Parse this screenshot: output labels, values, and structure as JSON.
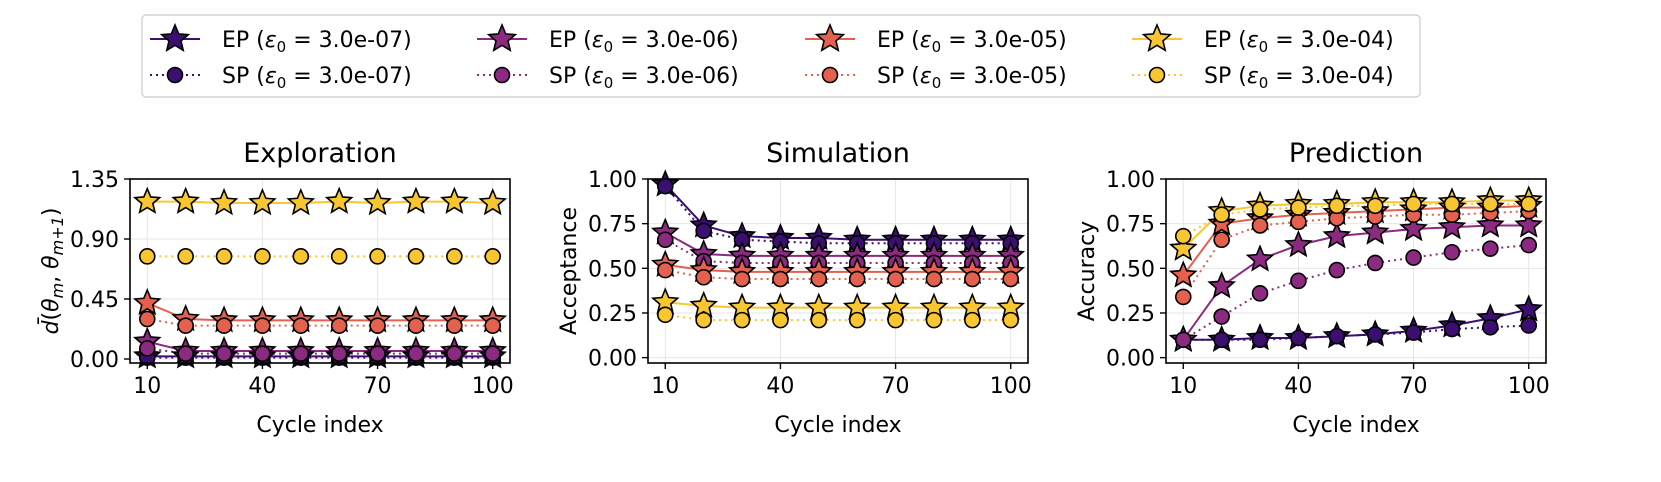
{
  "colors": {
    "c1": "#3b0f70",
    "c2": "#8c2981",
    "c3": "#e3614e",
    "c4": "#f8c630"
  },
  "legend": {
    "entries": [
      {
        "key": "c1",
        "method": "EP",
        "eps": "3.0e-07",
        "style": "star"
      },
      {
        "key": "c2",
        "method": "EP",
        "eps": "3.0e-06",
        "style": "star"
      },
      {
        "key": "c3",
        "method": "EP",
        "eps": "3.0e-05",
        "style": "star"
      },
      {
        "key": "c4",
        "method": "EP",
        "eps": "3.0e-04",
        "style": "star"
      },
      {
        "key": "c1",
        "method": "SP",
        "eps": "3.0e-07",
        "style": "circle"
      },
      {
        "key": "c2",
        "method": "SP",
        "eps": "3.0e-06",
        "style": "circle"
      },
      {
        "key": "c3",
        "method": "SP",
        "eps": "3.0e-05",
        "style": "circle"
      },
      {
        "key": "c4",
        "method": "SP",
        "eps": "3.0e-04",
        "style": "circle"
      }
    ]
  },
  "chart_data": [
    {
      "type": "line",
      "title": "Exploration",
      "xlabel": "Cycle index",
      "ylabel": "d̄(θm, θm+1)",
      "x": [
        10,
        20,
        30,
        40,
        50,
        60,
        70,
        80,
        90,
        100
      ],
      "xticks": [
        10,
        40,
        70,
        100
      ],
      "yticks": [
        0.0,
        0.45,
        0.9,
        1.35
      ],
      "ytick_labels": [
        "0.00",
        "0.45",
        "0.90",
        "1.35"
      ],
      "ylim": [
        -0.03,
        1.35
      ],
      "series": [
        {
          "name": "EP (ε0 = 3.0e-07)",
          "key": "c1",
          "style": "star",
          "values": [
            0.02,
            0.02,
            0.02,
            0.02,
            0.02,
            0.02,
            0.02,
            0.02,
            0.02,
            0.02
          ]
        },
        {
          "name": "SP (ε0 = 3.0e-07)",
          "key": "c1",
          "style": "circle",
          "values": [
            0.01,
            0.01,
            0.01,
            0.01,
            0.01,
            0.01,
            0.01,
            0.01,
            0.01,
            0.01
          ]
        },
        {
          "name": "EP (ε0 = 3.0e-06)",
          "key": "c2",
          "style": "star",
          "values": [
            0.13,
            0.06,
            0.06,
            0.06,
            0.06,
            0.06,
            0.06,
            0.06,
            0.06,
            0.06
          ]
        },
        {
          "name": "SP (ε0 = 3.0e-06)",
          "key": "c2",
          "style": "circle",
          "values": [
            0.08,
            0.04,
            0.04,
            0.04,
            0.04,
            0.04,
            0.04,
            0.04,
            0.04,
            0.04
          ]
        },
        {
          "name": "EP (ε0 = 3.0e-05)",
          "key": "c3",
          "style": "star",
          "values": [
            0.42,
            0.3,
            0.29,
            0.29,
            0.29,
            0.29,
            0.29,
            0.29,
            0.29,
            0.29
          ]
        },
        {
          "name": "SP (ε0 = 3.0e-05)",
          "key": "c3",
          "style": "circle",
          "values": [
            0.3,
            0.25,
            0.25,
            0.25,
            0.25,
            0.25,
            0.25,
            0.25,
            0.25,
            0.25
          ]
        },
        {
          "name": "EP (ε0 = 3.0e-04)",
          "key": "c4",
          "style": "star",
          "values": [
            1.18,
            1.18,
            1.17,
            1.17,
            1.17,
            1.18,
            1.17,
            1.18,
            1.18,
            1.17
          ]
        },
        {
          "name": "SP (ε0 = 3.0e-04)",
          "key": "c4",
          "style": "circle",
          "values": [
            0.77,
            0.77,
            0.77,
            0.77,
            0.77,
            0.77,
            0.77,
            0.77,
            0.77,
            0.77
          ]
        }
      ]
    },
    {
      "type": "line",
      "title": "Simulation",
      "xlabel": "Cycle index",
      "ylabel": "Acceptance",
      "x": [
        10,
        20,
        30,
        40,
        50,
        60,
        70,
        80,
        90,
        100
      ],
      "xticks": [
        10,
        40,
        70,
        100
      ],
      "yticks": [
        0.0,
        0.25,
        0.5,
        0.75,
        1.0
      ],
      "ytick_labels": [
        "0.00",
        "0.25",
        "0.50",
        "0.75",
        "1.00"
      ],
      "ylim": [
        -0.03,
        1.0
      ],
      "series": [
        {
          "name": "EP (ε0 = 3.0e-07)",
          "key": "c1",
          "style": "star",
          "values": [
            0.97,
            0.74,
            0.68,
            0.67,
            0.67,
            0.66,
            0.66,
            0.66,
            0.66,
            0.66
          ]
        },
        {
          "name": "SP (ε0 = 3.0e-07)",
          "key": "c1",
          "style": "circle",
          "values": [
            0.96,
            0.71,
            0.66,
            0.65,
            0.64,
            0.64,
            0.64,
            0.64,
            0.64,
            0.64
          ]
        },
        {
          "name": "EP (ε0 = 3.0e-06)",
          "key": "c2",
          "style": "star",
          "values": [
            0.7,
            0.58,
            0.57,
            0.57,
            0.57,
            0.57,
            0.57,
            0.57,
            0.57,
            0.57
          ]
        },
        {
          "name": "SP (ε0 = 3.0e-06)",
          "key": "c2",
          "style": "circle",
          "values": [
            0.66,
            0.54,
            0.53,
            0.53,
            0.53,
            0.53,
            0.53,
            0.53,
            0.53,
            0.53
          ]
        },
        {
          "name": "EP (ε0 = 3.0e-05)",
          "key": "c3",
          "style": "star",
          "values": [
            0.52,
            0.49,
            0.48,
            0.48,
            0.48,
            0.48,
            0.48,
            0.48,
            0.48,
            0.48
          ]
        },
        {
          "name": "SP (ε0 = 3.0e-05)",
          "key": "c3",
          "style": "circle",
          "values": [
            0.49,
            0.45,
            0.44,
            0.44,
            0.44,
            0.44,
            0.44,
            0.44,
            0.44,
            0.44
          ]
        },
        {
          "name": "EP (ε0 = 3.0e-04)",
          "key": "c4",
          "style": "star",
          "values": [
            0.31,
            0.29,
            0.28,
            0.28,
            0.28,
            0.28,
            0.28,
            0.28,
            0.28,
            0.28
          ]
        },
        {
          "name": "SP (ε0 = 3.0e-04)",
          "key": "c4",
          "style": "circle",
          "values": [
            0.24,
            0.21,
            0.21,
            0.21,
            0.21,
            0.21,
            0.21,
            0.21,
            0.21,
            0.21
          ]
        }
      ]
    },
    {
      "type": "line",
      "title": "Prediction",
      "xlabel": "Cycle index",
      "ylabel": "Accuracy",
      "x": [
        10,
        20,
        30,
        40,
        50,
        60,
        70,
        80,
        90,
        100
      ],
      "xticks": [
        10,
        40,
        70,
        100
      ],
      "yticks": [
        0.0,
        0.25,
        0.5,
        0.75,
        1.0
      ],
      "ytick_labels": [
        "0.00",
        "0.25",
        "0.50",
        "0.75",
        "1.00"
      ],
      "ylim": [
        -0.03,
        1.0
      ],
      "series": [
        {
          "name": "EP (ε0 = 3.0e-07)",
          "key": "c1",
          "style": "star",
          "values": [
            0.1,
            0.1,
            0.11,
            0.11,
            0.12,
            0.13,
            0.15,
            0.18,
            0.22,
            0.27
          ]
        },
        {
          "name": "SP (ε0 = 3.0e-07)",
          "key": "c1",
          "style": "circle",
          "values": [
            0.1,
            0.1,
            0.1,
            0.11,
            0.12,
            0.13,
            0.14,
            0.16,
            0.17,
            0.18
          ]
        },
        {
          "name": "EP (ε0 = 3.0e-06)",
          "key": "c2",
          "style": "star",
          "values": [
            0.1,
            0.4,
            0.55,
            0.63,
            0.68,
            0.7,
            0.72,
            0.73,
            0.74,
            0.74
          ]
        },
        {
          "name": "SP (ε0 = 3.0e-06)",
          "key": "c2",
          "style": "circle",
          "values": [
            0.1,
            0.23,
            0.36,
            0.43,
            0.49,
            0.53,
            0.56,
            0.59,
            0.61,
            0.63
          ]
        },
        {
          "name": "EP (ε0 = 3.0e-05)",
          "key": "c3",
          "style": "star",
          "values": [
            0.46,
            0.75,
            0.78,
            0.8,
            0.81,
            0.82,
            0.83,
            0.84,
            0.84,
            0.85
          ]
        },
        {
          "name": "SP (ε0 = 3.0e-05)",
          "key": "c3",
          "style": "circle",
          "values": [
            0.34,
            0.66,
            0.74,
            0.76,
            0.78,
            0.79,
            0.8,
            0.8,
            0.81,
            0.82
          ]
        },
        {
          "name": "EP (ε0 = 3.0e-04)",
          "key": "c4",
          "style": "star",
          "values": [
            0.61,
            0.82,
            0.85,
            0.86,
            0.86,
            0.87,
            0.87,
            0.87,
            0.88,
            0.88
          ]
        },
        {
          "name": "SP (ε0 = 3.0e-04)",
          "key": "c4",
          "style": "circle",
          "values": [
            0.68,
            0.8,
            0.83,
            0.84,
            0.85,
            0.85,
            0.86,
            0.86,
            0.86,
            0.86
          ]
        }
      ]
    }
  ]
}
